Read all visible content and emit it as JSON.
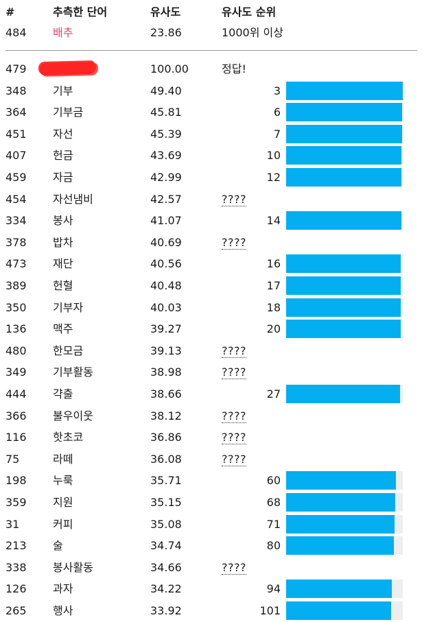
{
  "header": {
    "col_num": "#",
    "col_word": "추측한 단어",
    "col_similarity": "유사도",
    "col_rank": "유사도 순위"
  },
  "latest_guess": {
    "num": "484",
    "word": "배추",
    "similarity": "23.86",
    "rank": "1000위 이상"
  },
  "colors": {
    "bar": "#03aff0",
    "bar_track": "#eeeeee",
    "highlight_word": "#e8435c",
    "redaction": "#ff2424"
  },
  "unknown_label": "????",
  "answer_row": {
    "num": "479",
    "word_redacted": true,
    "similarity": "100.00",
    "rank": "정답!"
  },
  "rows": [
    {
      "num": "348",
      "word": "기부",
      "similarity": "49.40",
      "rank": "3",
      "progress": 0.998
    },
    {
      "num": "364",
      "word": "기부금",
      "similarity": "45.81",
      "rank": "6",
      "progress": 0.995
    },
    {
      "num": "451",
      "word": "자선",
      "similarity": "45.39",
      "rank": "7",
      "progress": 0.994
    },
    {
      "num": "407",
      "word": "헌금",
      "similarity": "43.69",
      "rank": "10",
      "progress": 0.991
    },
    {
      "num": "459",
      "word": "자금",
      "similarity": "42.99",
      "rank": "12",
      "progress": 0.989
    },
    {
      "num": "454",
      "word": "자선냄비",
      "similarity": "42.57",
      "rank": null,
      "progress": null
    },
    {
      "num": "334",
      "word": "봉사",
      "similarity": "41.07",
      "rank": "14",
      "progress": 0.987
    },
    {
      "num": "378",
      "word": "밥차",
      "similarity": "40.69",
      "rank": null,
      "progress": null
    },
    {
      "num": "473",
      "word": "재단",
      "similarity": "40.56",
      "rank": "16",
      "progress": 0.985
    },
    {
      "num": "389",
      "word": "헌혈",
      "similarity": "40.48",
      "rank": "17",
      "progress": 0.984
    },
    {
      "num": "350",
      "word": "기부자",
      "similarity": "40.03",
      "rank": "18",
      "progress": 0.983
    },
    {
      "num": "136",
      "word": "맥주",
      "similarity": "39.27",
      "rank": "20",
      "progress": 0.981
    },
    {
      "num": "480",
      "word": "한모금",
      "similarity": "39.13",
      "rank": null,
      "progress": null
    },
    {
      "num": "349",
      "word": "기부활동",
      "similarity": "38.98",
      "rank": null,
      "progress": null
    },
    {
      "num": "444",
      "word": "갹출",
      "similarity": "38.66",
      "rank": "27",
      "progress": 0.974
    },
    {
      "num": "366",
      "word": "불우이웃",
      "similarity": "38.12",
      "rank": null,
      "progress": null
    },
    {
      "num": "116",
      "word": "핫초코",
      "similarity": "36.86",
      "rank": null,
      "progress": null
    },
    {
      "num": "75",
      "word": "라떼",
      "similarity": "36.08",
      "rank": null,
      "progress": null
    },
    {
      "num": "198",
      "word": "누룩",
      "similarity": "35.71",
      "rank": "60",
      "progress": 0.941
    },
    {
      "num": "359",
      "word": "지원",
      "similarity": "35.15",
      "rank": "68",
      "progress": 0.933
    },
    {
      "num": "31",
      "word": "커피",
      "similarity": "35.08",
      "rank": "71",
      "progress": 0.93
    },
    {
      "num": "213",
      "word": "술",
      "similarity": "34.74",
      "rank": "80",
      "progress": 0.921
    },
    {
      "num": "338",
      "word": "봉사활동",
      "similarity": "34.66",
      "rank": null,
      "progress": null
    },
    {
      "num": "126",
      "word": "과자",
      "similarity": "34.22",
      "rank": "94",
      "progress": 0.907
    },
    {
      "num": "265",
      "word": "행사",
      "similarity": "33.92",
      "rank": "101",
      "progress": 0.9
    }
  ]
}
